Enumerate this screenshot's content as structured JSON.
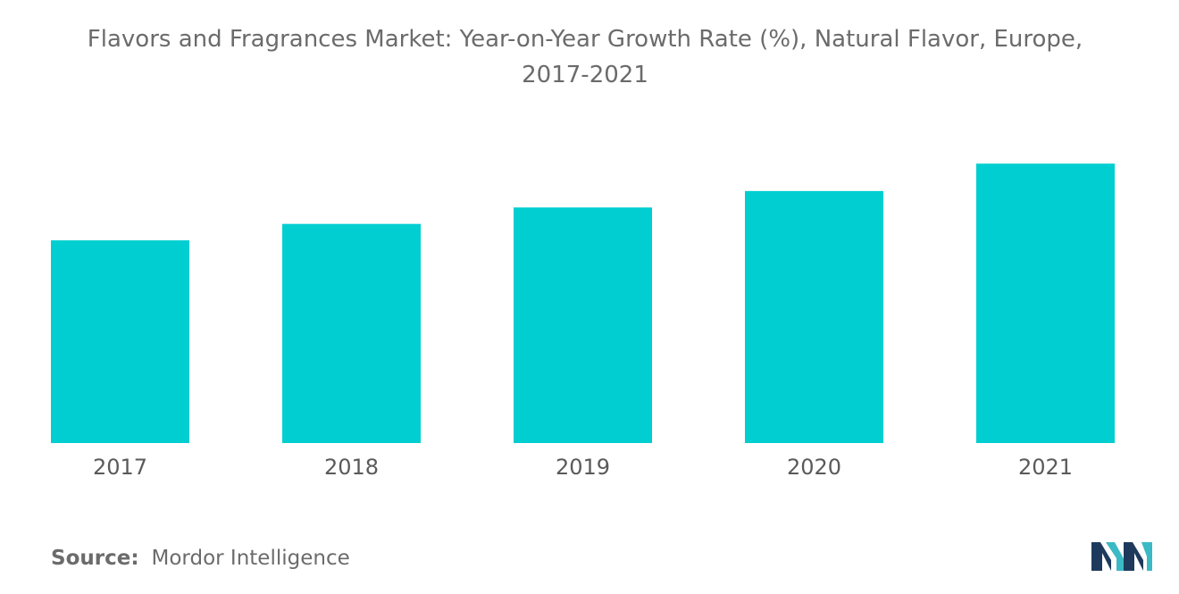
{
  "title_line1": "Flavors and Fragrances Market: Year-on-Year Growth Rate (%), Natural Flavor, Europe,",
  "title_line2": "2017-2021",
  "source_label": "Source:",
  "source_name": "Mordor Intelligence",
  "logo_icon": "mordor-intelligence-logo",
  "colors": {
    "bar": "#00CED1",
    "logo_dark": "#1d3a5c",
    "logo_teal": "#3bb9c4"
  },
  "chart_data": {
    "type": "bar",
    "title": "Flavors and Fragrances Market: Year-on-Year Growth Rate (%), Natural Flavor, Europe, 2017-2021",
    "categories": [
      "2017",
      "2018",
      "2019",
      "2020",
      "2021"
    ],
    "values": [
      3.7,
      4.0,
      4.3,
      4.6,
      5.1
    ],
    "xlabel": "",
    "ylabel": "",
    "ylim": [
      0,
      6
    ],
    "grid": false,
    "legend": "none"
  }
}
